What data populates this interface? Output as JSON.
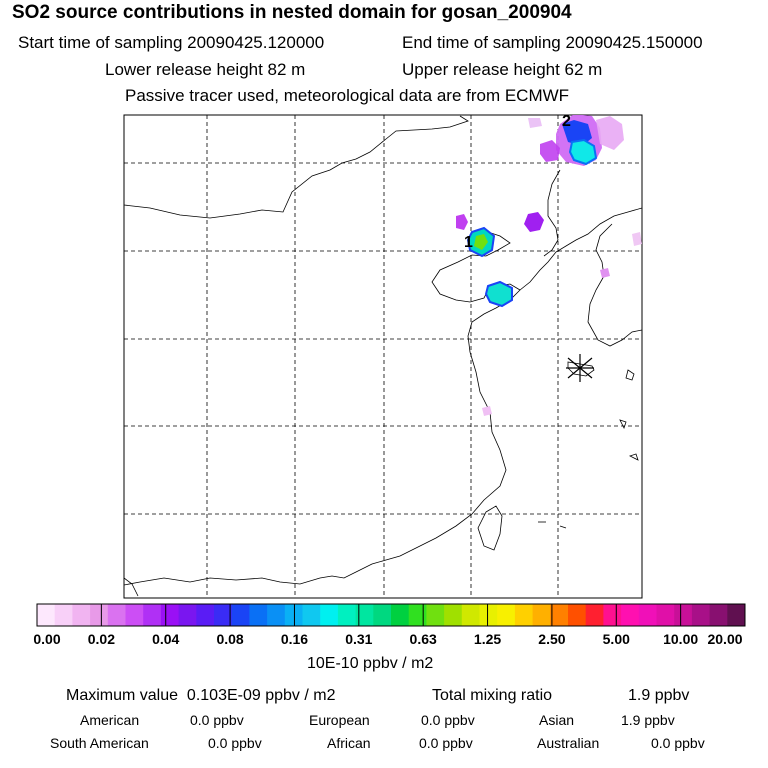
{
  "header": {
    "title": "SO2 source contributions in nested domain for gosan_200904",
    "start_time": "Start time of sampling 20090425.120000",
    "end_time": "End time of sampling 20090425.150000",
    "lower_release": "Lower release height   82 m",
    "upper_release": "Upper release height   62 m",
    "tracer_note": "Passive tracer used, meteorological data are from ECMWF"
  },
  "map": {
    "source_labels": [
      "1",
      "2"
    ]
  },
  "colorbar": {
    "colors": [
      "#fde8fd",
      "#f8d0f8",
      "#f1b4f1",
      "#e89ae8",
      "#da72f0",
      "#cc4ef5",
      "#b030f5",
      "#9a10f5",
      "#7a16f0",
      "#5a1cf5",
      "#3a2cf5",
      "#1a44f5",
      "#0a70f5",
      "#0a90f5",
      "#0ab0f5",
      "#10c8f0",
      "#00f0f0",
      "#00f0c0",
      "#00e6a0",
      "#00d880",
      "#00d040",
      "#30e020",
      "#70e010",
      "#a0e000",
      "#d0e800",
      "#e8f000",
      "#f8f000",
      "#ffd000",
      "#ffb000",
      "#ff8000",
      "#ff5000",
      "#ff2030",
      "#ff1090",
      "#ff10b0",
      "#f010b8",
      "#e010a8",
      "#c81098",
      "#a81088",
      "#881070",
      "#601050"
    ],
    "ticks": [
      "0.00",
      "0.02",
      "0.04",
      "0.08",
      "0.16",
      "0.31",
      "0.63",
      "1.25",
      "2.50",
      "5.00",
      "10.00",
      "20.00"
    ],
    "units": "10E-10 ppbv / m2"
  },
  "summary": {
    "max_label": "Maximum value",
    "max_value": "0.103E-09 ppbv / m2",
    "total_label": "Total mixing ratio",
    "total_value": "1.9 ppbv",
    "regions": [
      {
        "name": "American",
        "value": "0.0 ppbv"
      },
      {
        "name": "European",
        "value": "0.0 ppbv"
      },
      {
        "name": "Asian",
        "value": "1.9 ppbv"
      },
      {
        "name": "South American",
        "value": "0.0 ppbv"
      },
      {
        "name": "African",
        "value": "0.0 ppbv"
      },
      {
        "name": "Australian",
        "value": "0.0 ppbv"
      }
    ]
  }
}
